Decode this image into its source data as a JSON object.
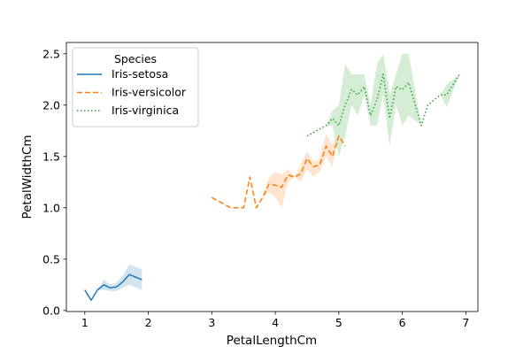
{
  "chart_data": {
    "type": "line",
    "xlabel": "PetalLengthCm",
    "ylabel": "PetalWidthCm",
    "xlim": [
      0.71,
      7.19
    ],
    "ylim": [
      -0.01,
      2.61
    ],
    "xticks": [
      1,
      2,
      3,
      4,
      5,
      6,
      7
    ],
    "yticks": [
      0.0,
      0.5,
      1.0,
      1.5,
      2.0,
      2.5
    ],
    "xtick_labels": [
      "1",
      "2",
      "3",
      "4",
      "5",
      "6",
      "7"
    ],
    "ytick_labels": [
      "0.0",
      "0.5",
      "1.0",
      "1.5",
      "2.0",
      "2.5"
    ],
    "grid": false,
    "legend": {
      "title": "Species",
      "position": "upper-left"
    },
    "series": [
      {
        "name": "Iris-setosa",
        "color": "#1f77b4",
        "dash": "solid",
        "x": [
          1.0,
          1.1,
          1.2,
          1.3,
          1.4,
          1.5,
          1.6,
          1.7,
          1.9
        ],
        "y": [
          0.2,
          0.1,
          0.2,
          0.25,
          0.22,
          0.23,
          0.28,
          0.35,
          0.3
        ],
        "lower": [
          0.2,
          0.1,
          0.2,
          0.2,
          0.19,
          0.19,
          0.22,
          0.25,
          0.2
        ],
        "upper": [
          0.2,
          0.1,
          0.2,
          0.3,
          0.25,
          0.27,
          0.34,
          0.45,
          0.4
        ]
      },
      {
        "name": "Iris-versicolor",
        "color": "#ff7f0e",
        "dash": "dashed",
        "x": [
          3.0,
          3.3,
          3.5,
          3.6,
          3.7,
          3.8,
          3.9,
          4.0,
          4.1,
          4.2,
          4.3,
          4.4,
          4.5,
          4.6,
          4.7,
          4.8,
          4.9,
          5.0,
          5.1
        ],
        "y": [
          1.1,
          1.0,
          1.0,
          1.3,
          1.0,
          1.1,
          1.23,
          1.22,
          1.2,
          1.32,
          1.3,
          1.33,
          1.48,
          1.4,
          1.42,
          1.6,
          1.5,
          1.7,
          1.6
        ],
        "lower": [
          1.1,
          1.0,
          1.0,
          1.3,
          1.0,
          1.1,
          1.15,
          1.1,
          1.0,
          1.25,
          1.3,
          1.25,
          1.38,
          1.3,
          1.35,
          1.5,
          1.4,
          1.7,
          1.6
        ],
        "upper": [
          1.1,
          1.0,
          1.0,
          1.3,
          1.0,
          1.1,
          1.3,
          1.35,
          1.32,
          1.38,
          1.3,
          1.42,
          1.55,
          1.45,
          1.48,
          1.72,
          1.62,
          1.7,
          1.6
        ]
      },
      {
        "name": "Iris-virginica",
        "color": "#2ca02c",
        "dash": "dotted",
        "x": [
          4.5,
          4.8,
          4.9,
          5.0,
          5.1,
          5.2,
          5.3,
          5.4,
          5.5,
          5.6,
          5.7,
          5.8,
          5.9,
          6.0,
          6.1,
          6.3,
          6.4,
          6.6,
          6.7,
          6.9
        ],
        "y": [
          1.7,
          1.8,
          1.87,
          1.8,
          2.0,
          2.15,
          2.1,
          2.18,
          1.9,
          2.05,
          2.3,
          1.87,
          2.18,
          2.15,
          2.22,
          1.8,
          2.0,
          2.1,
          2.1,
          2.3
        ],
        "lower": [
          1.7,
          1.8,
          1.8,
          1.5,
          1.7,
          2.0,
          1.9,
          2.1,
          1.8,
          1.8,
          2.1,
          1.6,
          2.0,
          1.8,
          1.9,
          1.8,
          2.0,
          2.1,
          1.98,
          2.3
        ],
        "upper": [
          1.7,
          1.8,
          1.95,
          2.0,
          2.4,
          2.3,
          2.3,
          2.3,
          2.0,
          2.4,
          2.5,
          2.1,
          2.3,
          2.5,
          2.5,
          1.8,
          2.0,
          2.1,
          2.2,
          2.3
        ]
      }
    ]
  }
}
